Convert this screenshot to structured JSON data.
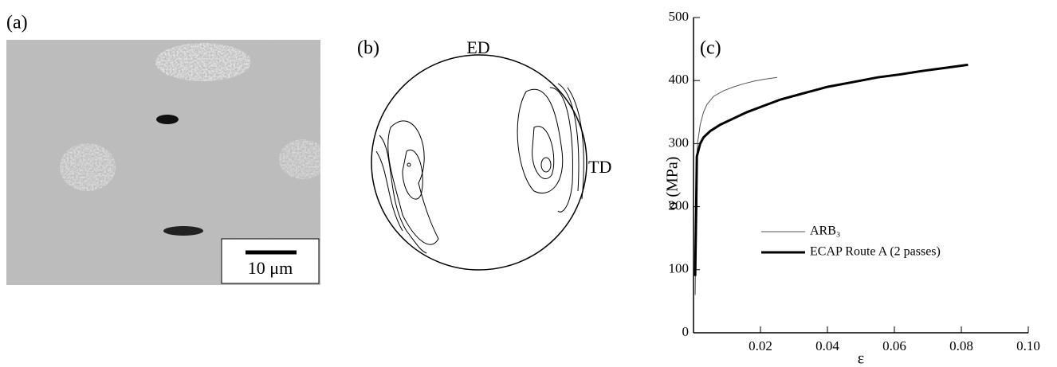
{
  "panels": {
    "a": {
      "label": "(a)",
      "scale_bar": "10 μm"
    },
    "b": {
      "label": "(b)",
      "top": "ED",
      "right": "TD"
    }
  },
  "chart_data": {
    "type": "line",
    "label": "(c)",
    "x_label": "ε",
    "y_label": "σ (MPa)",
    "xlim": [
      0,
      0.1
    ],
    "xticks": [
      0.02,
      0.04,
      0.06,
      0.08,
      {
        "value": 0.1,
        "label": "0.10"
      }
    ],
    "ylim": [
      0,
      500
    ],
    "yticks": [
      0,
      100,
      200,
      300,
      400,
      500
    ],
    "series": [
      {
        "name": "ARB₃",
        "color": "#555555",
        "line_width": 1,
        "x": [
          0.0005,
          0.0007,
          0.0009,
          0.0012,
          0.002,
          0.003,
          0.004,
          0.006,
          0.009,
          0.012,
          0.015,
          0.018,
          0.021,
          0.025
        ],
        "values": [
          60,
          150,
          260,
          300,
          330,
          350,
          362,
          375,
          384,
          390,
          395,
          399,
          402,
          405
        ]
      },
      {
        "name": "ECAP Route A (2 passes)",
        "color": "#000000",
        "line_width": 3,
        "x": [
          0.0005,
          0.0008,
          0.001,
          0.002,
          0.003,
          0.005,
          0.008,
          0.012,
          0.016,
          0.021,
          0.026,
          0.033,
          0.04,
          0.048,
          0.055,
          0.062,
          0.068,
          0.075,
          0.082
        ],
        "values": [
          90,
          200,
          280,
          300,
          310,
          320,
          330,
          340,
          350,
          360,
          370,
          380,
          390,
          398,
          405,
          410,
          415,
          420,
          425
        ]
      }
    ]
  }
}
